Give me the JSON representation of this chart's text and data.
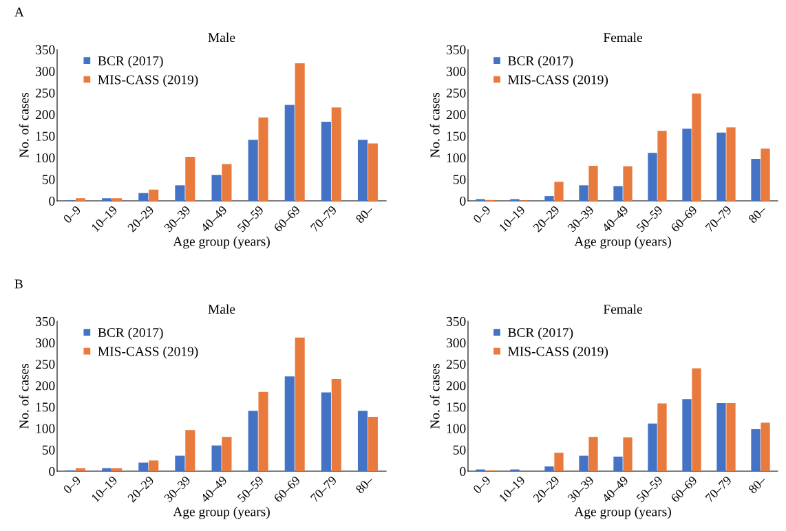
{
  "chart_data": [
    {
      "type": "bar",
      "title": "Male",
      "xlabel": "Age group (years)",
      "ylabel": "No. of cases",
      "annotations": [
        "A"
      ],
      "categories": [
        "0–9",
        "10–19",
        "20–29",
        "30–39",
        "40–49",
        "50–59",
        "60–69",
        "70–79",
        "80–"
      ],
      "ylim": [
        0,
        350
      ],
      "yticks": [
        0,
        50,
        100,
        150,
        200,
        250,
        300,
        350
      ],
      "legend": "top left",
      "series": [
        {
          "name": "BCR (2017)",
          "color": "#4472c4",
          "values": [
            1,
            6,
            18,
            36,
            60,
            141,
            222,
            183,
            141
          ]
        },
        {
          "name": "MIS-CASS (2019)",
          "color": "#e97a3e",
          "values": [
            6,
            6,
            26,
            102,
            85,
            193,
            318,
            216,
            133
          ]
        }
      ]
    },
    {
      "type": "bar",
      "title": "Female",
      "xlabel": "Age group (years)",
      "ylabel": "No. of cases",
      "categories": [
        "0–9",
        "10–19",
        "20–29",
        "30–39",
        "40–49",
        "50–59",
        "60–69",
        "70–79",
        "80–"
      ],
      "ylim": [
        0,
        350
      ],
      "yticks": [
        0,
        50,
        100,
        150,
        200,
        250,
        300,
        350
      ],
      "legend": "top left",
      "series": [
        {
          "name": "BCR (2017)",
          "color": "#4472c4",
          "values": [
            4,
            4,
            11,
            36,
            34,
            111,
            167,
            158,
            97
          ]
        },
        {
          "name": "MIS-CASS (2019)",
          "color": "#e97a3e",
          "values": [
            2,
            1,
            44,
            81,
            80,
            162,
            248,
            170,
            121
          ]
        }
      ]
    },
    {
      "type": "bar",
      "title": "Male",
      "xlabel": "Age group (years)",
      "ylabel": "No. of cases",
      "annotations": [
        "B"
      ],
      "categories": [
        "0–9",
        "10–19",
        "20–29",
        "30–39",
        "40–49",
        "50–59",
        "60–69",
        "70–79",
        "80–"
      ],
      "ylim": [
        0,
        350
      ],
      "yticks": [
        0,
        50,
        100,
        150,
        200,
        250,
        300,
        350
      ],
      "legend": "top left",
      "series": [
        {
          "name": "BCR (2017)",
          "color": "#4472c4",
          "values": [
            2,
            7,
            20,
            36,
            60,
            141,
            221,
            184,
            141
          ]
        },
        {
          "name": "MIS-CASS (2019)",
          "color": "#e97a3e",
          "values": [
            7,
            7,
            25,
            96,
            80,
            185,
            312,
            215,
            127
          ]
        }
      ]
    },
    {
      "type": "bar",
      "title": "Female",
      "xlabel": "Age group (years)",
      "ylabel": "No. of cases",
      "categories": [
        "0–9",
        "10–19",
        "20–29",
        "30–39",
        "40–49",
        "50–59",
        "60–69",
        "70–79",
        "80–"
      ],
      "ylim": [
        0,
        350
      ],
      "yticks": [
        0,
        50,
        100,
        150,
        200,
        250,
        300,
        350
      ],
      "legend": "top left",
      "series": [
        {
          "name": "BCR (2017)",
          "color": "#4472c4",
          "values": [
            4,
            4,
            11,
            36,
            34,
            111,
            168,
            159,
            98
          ]
        },
        {
          "name": "MIS-CASS (2019)",
          "color": "#e97a3e",
          "values": [
            2,
            0,
            43,
            80,
            79,
            158,
            240,
            159,
            113
          ]
        }
      ]
    }
  ]
}
